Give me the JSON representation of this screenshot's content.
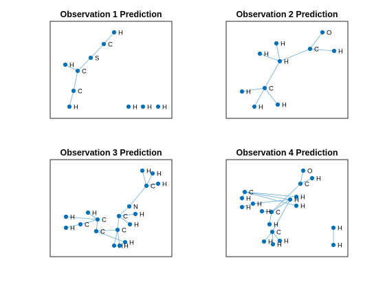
{
  "figure": {
    "node_color": "#0072bd",
    "edge_color": "#6aaed6",
    "panels": [
      {
        "title": "Observation 1 Prediction",
        "nodes": [
          "H",
          "C",
          "S",
          "C",
          "H",
          "C",
          "H",
          "H",
          "H",
          "H"
        ],
        "edges": [
          [
            0,
            1
          ],
          [
            1,
            2
          ],
          [
            2,
            3
          ],
          [
            3,
            4
          ],
          [
            3,
            5
          ],
          [
            5,
            6
          ]
        ]
      },
      {
        "title": "Observation 2 Prediction",
        "nodes": [
          "O",
          "C",
          "H",
          "H",
          "H",
          "H",
          "C",
          "H",
          "H",
          "H"
        ],
        "edges": [
          [
            0,
            1
          ],
          [
            1,
            2
          ],
          [
            1,
            3
          ],
          [
            3,
            4
          ],
          [
            3,
            5
          ],
          [
            3,
            6
          ],
          [
            6,
            7
          ],
          [
            6,
            8
          ],
          [
            6,
            9
          ]
        ]
      },
      {
        "title": "Observation 3 Prediction",
        "nodes": [
          "H",
          "H",
          "C",
          "H",
          "N",
          "H",
          "C",
          "H",
          "C",
          "H",
          "C",
          "H",
          "C",
          "H",
          "C",
          "H",
          "H",
          "H"
        ],
        "edges": [
          [
            0,
            2
          ],
          [
            1,
            2
          ],
          [
            2,
            3
          ],
          [
            2,
            4
          ],
          [
            4,
            6
          ],
          [
            6,
            5
          ],
          [
            6,
            7
          ],
          [
            6,
            10
          ],
          [
            10,
            15
          ],
          [
            10,
            16
          ],
          [
            10,
            12
          ],
          [
            12,
            11
          ],
          [
            12,
            8
          ],
          [
            8,
            9
          ],
          [
            8,
            13
          ],
          [
            8,
            14
          ],
          [
            14,
            17
          ]
        ]
      },
      {
        "title": "Observation 4 Prediction",
        "nodes": [
          "O",
          "H",
          "C",
          "H",
          "H",
          "C",
          "H",
          "H",
          "H",
          "C",
          "H",
          "H",
          "H",
          "C",
          "H",
          "H",
          "H",
          "H",
          "H"
        ],
        "edges": [
          [
            0,
            2
          ],
          [
            1,
            2
          ],
          [
            2,
            5
          ],
          [
            5,
            6
          ],
          [
            5,
            7
          ],
          [
            5,
            8
          ],
          [
            8,
            9
          ],
          [
            8,
            13
          ],
          [
            9,
            3
          ],
          [
            9,
            4
          ],
          [
            9,
            10
          ],
          [
            13,
            15
          ],
          [
            13,
            16
          ],
          [
            13,
            14
          ],
          [
            8,
            12
          ],
          [
            12,
            11
          ],
          [
            17,
            18
          ]
        ]
      }
    ]
  }
}
